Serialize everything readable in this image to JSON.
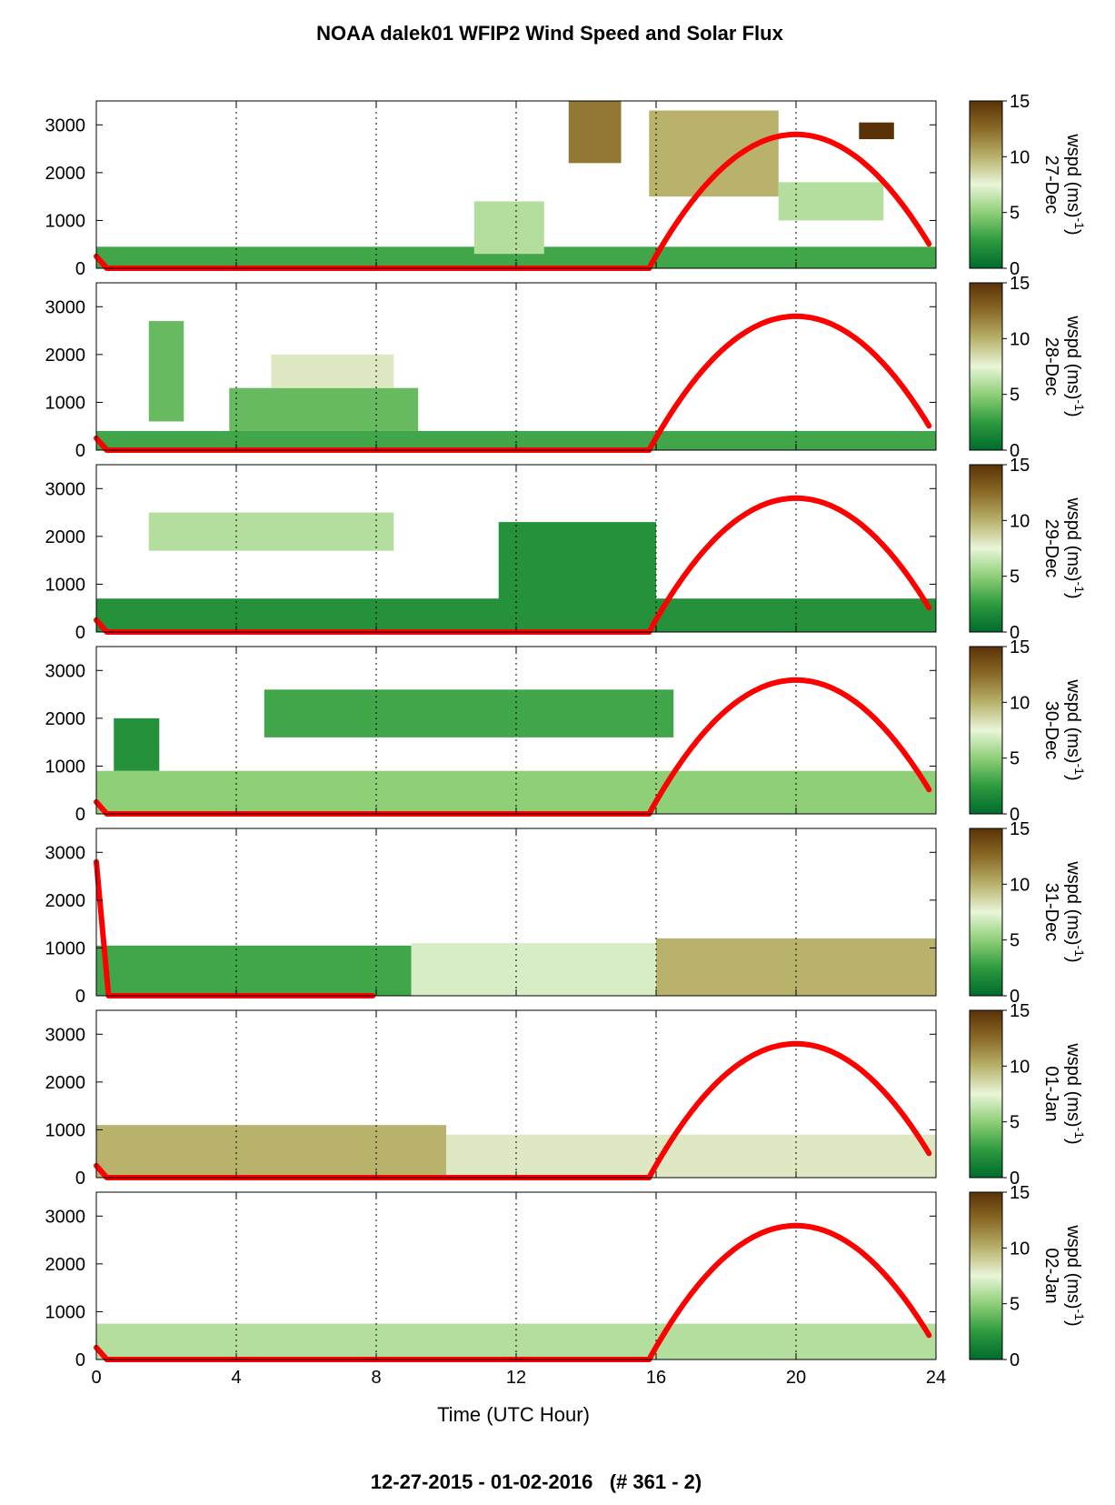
{
  "title": "NOAA dalek01 WFIP2 Wind Speed and Solar Flux",
  "footer": "12-27-2015 - 01-02-2016   (# 361 - 2)",
  "chart_data": {
    "type": "heatmap",
    "xlabel": "Time (UTC Hour)",
    "xlim": [
      0,
      24
    ],
    "x_ticks": [
      "0",
      "4",
      "8",
      "12",
      "16",
      "20",
      "24"
    ],
    "ylim": [
      0,
      3500
    ],
    "y_ticks": [
      "0",
      "1000",
      "2000",
      "3000"
    ],
    "grid": "vertical dotted at 4-hour intervals",
    "colorbar": {
      "label": "wspd (ms-1)",
      "range": [
        0,
        15
      ],
      "ticks": [
        "0",
        "5",
        "10",
        "15"
      ],
      "colors": [
        "#006b2e",
        "#2e9a3e",
        "#8fcf78",
        "#e8f5d8",
        "#b8b26c",
        "#8a6a26",
        "#5a3208"
      ]
    },
    "solar_flux_color": "#ff0000",
    "panels": [
      {
        "day": "27-Dec",
        "wind_layers": [
          {
            "x0": 0,
            "x1": 24,
            "top": 450,
            "speed": 3
          },
          {
            "x0": 10.8,
            "x1": 12.8,
            "bottom": 300,
            "top": 1400,
            "speed": 6
          },
          {
            "x0": 13.5,
            "x1": 15.0,
            "bottom": 2200,
            "top": 3500,
            "speed": 12
          },
          {
            "x0": 15.8,
            "x1": 19.5,
            "bottom": 1500,
            "top": 3300,
            "speed": 10
          },
          {
            "x0": 19.5,
            "x1": 22.5,
            "bottom": 1000,
            "top": 1800,
            "speed": 6
          },
          {
            "x0": 21.8,
            "x1": 22.8,
            "bottom": 2700,
            "top": 3050,
            "speed": 15
          }
        ],
        "solar": [
          [
            0,
            250
          ],
          [
            0.3,
            0
          ],
          [
            15.8,
            0
          ],
          [
            18,
            2250
          ],
          [
            20,
            2800
          ],
          [
            22,
            2250
          ],
          [
            23.8,
            600
          ]
        ]
      },
      {
        "day": "28-Dec",
        "wind_layers": [
          {
            "x0": 0,
            "x1": 24,
            "top": 400,
            "speed": 3
          },
          {
            "x0": 1.5,
            "x1": 2.5,
            "bottom": 600,
            "top": 2700,
            "speed": 4
          },
          {
            "x0": 3.8,
            "x1": 9.2,
            "bottom": 400,
            "top": 1300,
            "speed": 4
          },
          {
            "x0": 5.0,
            "x1": 8.5,
            "bottom": 1300,
            "top": 2000,
            "speed": 8
          }
        ],
        "solar": [
          [
            0,
            250
          ],
          [
            0.3,
            0
          ],
          [
            15.8,
            0
          ],
          [
            18,
            2250
          ],
          [
            20,
            2800
          ],
          [
            22,
            2250
          ],
          [
            23.8,
            600
          ]
        ]
      },
      {
        "day": "29-Dec",
        "wind_layers": [
          {
            "x0": 0,
            "x1": 24,
            "top": 700,
            "speed": 2
          },
          {
            "x0": 1.5,
            "x1": 8.5,
            "bottom": 1700,
            "top": 2500,
            "speed": 6
          },
          {
            "x0": 11.5,
            "x1": 16.0,
            "bottom": 600,
            "top": 2300,
            "speed": 2
          }
        ],
        "solar": [
          [
            0,
            250
          ],
          [
            0.3,
            0
          ],
          [
            15.8,
            0
          ],
          [
            18,
            2250
          ],
          [
            20,
            2800
          ],
          [
            22,
            2250
          ],
          [
            23.8,
            600
          ]
        ]
      },
      {
        "day": "30-Dec",
        "wind_layers": [
          {
            "x0": 0,
            "x1": 24,
            "top": 900,
            "speed": 5
          },
          {
            "x0": 0.5,
            "x1": 1.8,
            "bottom": 900,
            "top": 2000,
            "speed": 2
          },
          {
            "x0": 4.8,
            "x1": 16.5,
            "bottom": 1600,
            "top": 2600,
            "speed": 3
          }
        ],
        "solar": [
          [
            0,
            250
          ],
          [
            0.3,
            0
          ],
          [
            15.8,
            0
          ],
          [
            18,
            2250
          ],
          [
            20,
            2800
          ],
          [
            22,
            2250
          ],
          [
            23.8,
            600
          ]
        ]
      },
      {
        "day": "31-Dec",
        "wind_layers": [
          {
            "x0": 0,
            "x1": 9,
            "top": 1050,
            "speed": 3
          },
          {
            "x0": 9,
            "x1": 16,
            "top": 1100,
            "speed": 7
          },
          {
            "x0": 16,
            "x1": 24,
            "top": 1200,
            "speed": 10
          }
        ],
        "solar": [
          [
            0,
            2800
          ],
          [
            0.35,
            0
          ],
          [
            7.9,
            0
          ]
        ]
      },
      {
        "day": "01-Jan",
        "wind_layers": [
          {
            "x0": 0,
            "x1": 10,
            "top": 1100,
            "speed": 10
          },
          {
            "x0": 10,
            "x1": 24,
            "top": 900,
            "speed": 8
          }
        ],
        "solar": [
          [
            0,
            250
          ],
          [
            0.3,
            0
          ],
          [
            15.8,
            0
          ],
          [
            18,
            2250
          ],
          [
            20,
            2800
          ],
          [
            22,
            2250
          ],
          [
            23.8,
            600
          ]
        ]
      },
      {
        "day": "02-Jan",
        "wind_layers": [
          {
            "x0": 0,
            "x1": 24,
            "top": 750,
            "speed": 6
          }
        ],
        "solar": [
          [
            0,
            250
          ],
          [
            0.3,
            0
          ],
          [
            15.8,
            0
          ],
          [
            18,
            2250
          ],
          [
            20,
            2800
          ],
          [
            22,
            2250
          ],
          [
            23.8,
            600
          ]
        ]
      }
    ]
  }
}
